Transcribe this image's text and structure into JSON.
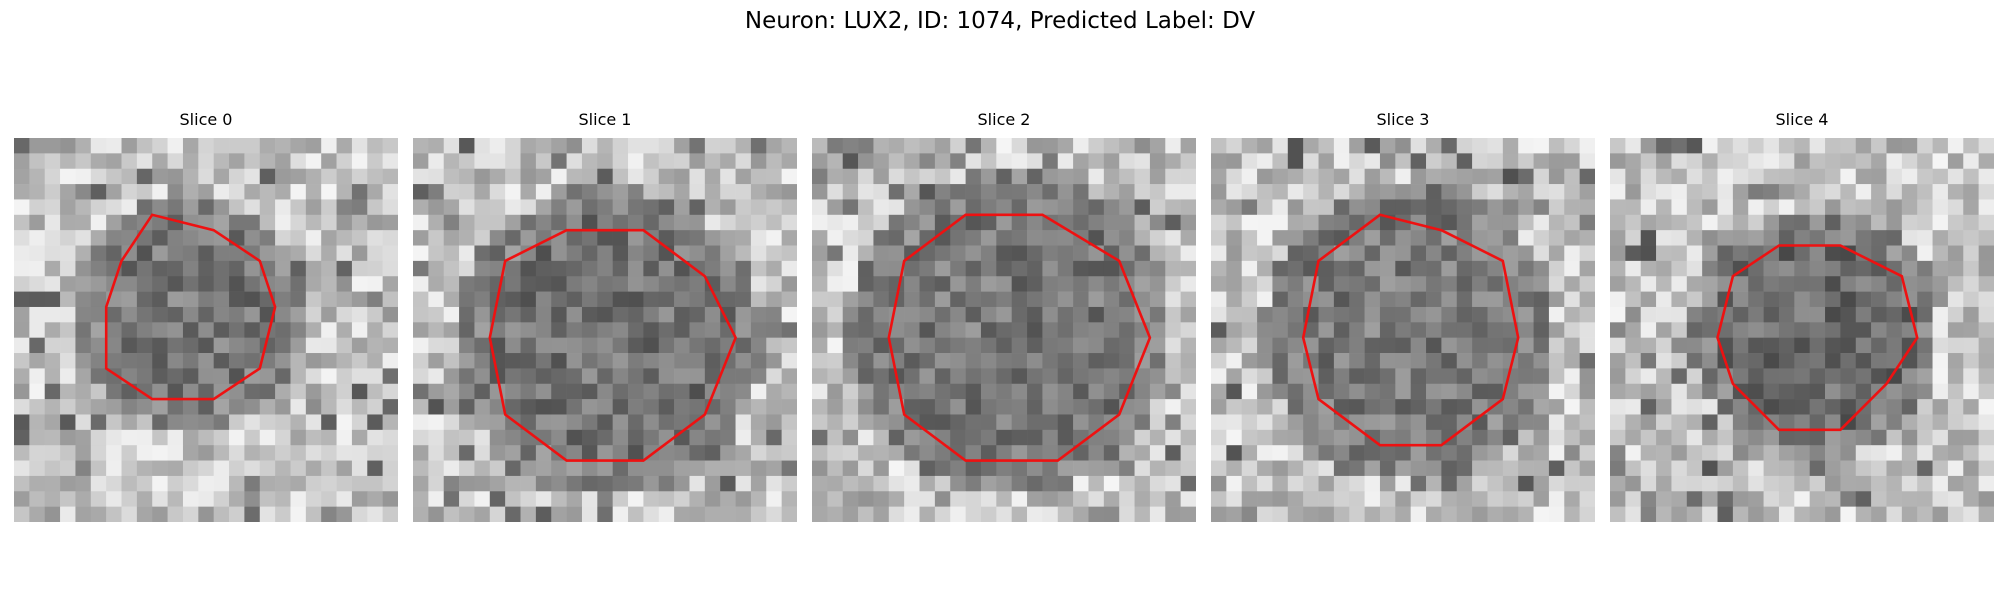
{
  "figure": {
    "title": "Neuron: LUX2, ID: 1074, Predicted Label: DV"
  },
  "contour_color": "#ee1111",
  "panels": [
    {
      "title": "Slice 0"
    },
    {
      "title": "Slice 1"
    },
    {
      "title": "Slice 2"
    },
    {
      "title": "Slice 3"
    },
    {
      "title": "Slice 4"
    }
  ]
}
